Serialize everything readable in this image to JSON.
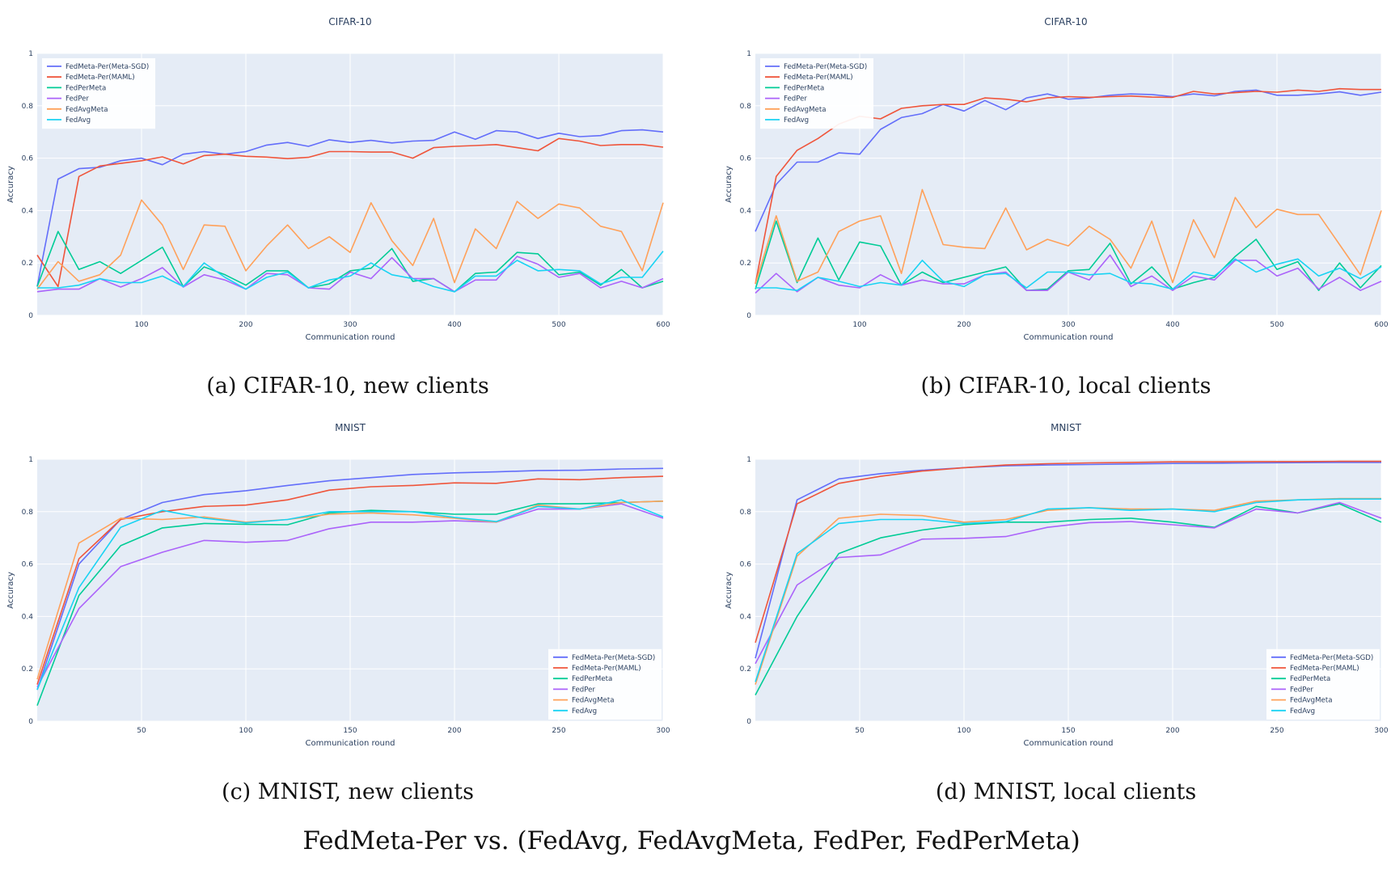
{
  "figure_caption": "FedMeta-Per vs. (FedAvg, FedAvgMeta, FedPer, FedPerMeta)",
  "colors": {
    "FedMeta-Per(Meta-SGD)": "#636efa",
    "FedMeta-Per(MAML)": "#ef553b",
    "FedPerMeta": "#00cc96",
    "FedPer": "#ab63fa",
    "FedAvgMeta": "#ffa15a",
    "FedAvg": "#19d3f3",
    "plot_bg": "#e5ecf6",
    "grid": "#ffffff"
  },
  "chart_data": [
    {
      "type": "line",
      "title": "CIFAR-10",
      "caption": "(a) CIFAR-10, new clients",
      "xlabel": "Communication round",
      "ylabel": "Accuracy",
      "xlim": [
        0,
        600
      ],
      "ylim": [
        0,
        1
      ],
      "xticks": [
        100,
        200,
        300,
        400,
        500,
        600
      ],
      "yticks": [
        0,
        0.2,
        0.4,
        0.6,
        0.8,
        1
      ],
      "ytick_labels": [
        "0",
        "0.2",
        "0.4",
        "0.6",
        "0.8",
        "1"
      ],
      "grid": true,
      "legend_position": "top-left",
      "x": [
        0,
        20,
        40,
        60,
        80,
        100,
        120,
        140,
        160,
        180,
        200,
        220,
        240,
        260,
        280,
        300,
        320,
        340,
        360,
        380,
        400,
        420,
        440,
        460,
        480,
        500,
        520,
        540,
        560,
        580,
        600
      ],
      "series": [
        {
          "name": "FedMeta-Per(Meta-SGD)",
          "values": [
            0.11,
            0.52,
            0.56,
            0.565,
            0.59,
            0.6,
            0.575,
            0.615,
            0.625,
            0.615,
            0.625,
            0.65,
            0.66,
            0.645,
            0.67,
            0.66,
            0.668,
            0.658,
            0.665,
            0.668,
            0.7,
            0.672,
            0.705,
            0.7,
            0.675,
            0.695,
            0.682,
            0.686,
            0.705,
            0.708,
            0.7
          ]
        },
        {
          "name": "FedMeta-Per(MAML)",
          "values": [
            0.23,
            0.11,
            0.53,
            0.57,
            0.58,
            0.59,
            0.605,
            0.578,
            0.61,
            0.615,
            0.607,
            0.604,
            0.598,
            0.603,
            0.625,
            0.625,
            0.623,
            0.623,
            0.6,
            0.64,
            0.645,
            0.648,
            0.652,
            0.64,
            0.628,
            0.675,
            0.665,
            0.648,
            0.652,
            0.652,
            0.642
          ]
        },
        {
          "name": "FedPerMeta",
          "values": [
            0.11,
            0.32,
            0.175,
            0.205,
            0.16,
            0.21,
            0.26,
            0.11,
            0.185,
            0.155,
            0.115,
            0.17,
            0.17,
            0.105,
            0.12,
            0.17,
            0.18,
            0.255,
            0.13,
            0.14,
            0.09,
            0.16,
            0.165,
            0.24,
            0.235,
            0.155,
            0.165,
            0.115,
            0.175,
            0.105,
            0.13
          ]
        },
        {
          "name": "FedPer",
          "values": [
            0.09,
            0.1,
            0.1,
            0.14,
            0.108,
            0.14,
            0.182,
            0.108,
            0.155,
            0.135,
            0.1,
            0.16,
            0.155,
            0.105,
            0.1,
            0.165,
            0.14,
            0.22,
            0.14,
            0.14,
            0.09,
            0.135,
            0.135,
            0.225,
            0.195,
            0.145,
            0.16,
            0.105,
            0.13,
            0.105,
            0.14
          ]
        },
        {
          "name": "FedAvgMeta",
          "values": [
            0.1,
            0.205,
            0.13,
            0.155,
            0.23,
            0.44,
            0.345,
            0.175,
            0.345,
            0.34,
            0.17,
            0.265,
            0.345,
            0.255,
            0.3,
            0.24,
            0.43,
            0.285,
            0.19,
            0.37,
            0.125,
            0.33,
            0.255,
            0.435,
            0.37,
            0.425,
            0.41,
            0.34,
            0.32,
            0.17,
            0.43
          ]
        },
        {
          "name": "FedAvg",
          "values": [
            0.105,
            0.105,
            0.115,
            0.14,
            0.125,
            0.125,
            0.15,
            0.11,
            0.2,
            0.145,
            0.1,
            0.145,
            0.165,
            0.105,
            0.135,
            0.15,
            0.2,
            0.155,
            0.14,
            0.11,
            0.09,
            0.15,
            0.15,
            0.21,
            0.17,
            0.175,
            0.17,
            0.12,
            0.145,
            0.145,
            0.245
          ]
        }
      ]
    },
    {
      "type": "line",
      "title": "CIFAR-10",
      "caption": "(b) CIFAR-10, local clients",
      "xlabel": "Communication round",
      "ylabel": "Accuracy",
      "xlim": [
        0,
        600
      ],
      "ylim": [
        0,
        1
      ],
      "xticks": [
        100,
        200,
        300,
        400,
        500,
        600
      ],
      "yticks": [
        0,
        0.2,
        0.4,
        0.6,
        0.8,
        1
      ],
      "ytick_labels": [
        "0",
        "0.2",
        "0.4",
        "0.6",
        "0.8",
        "1"
      ],
      "grid": true,
      "legend_position": "top-left",
      "x": [
        0,
        20,
        40,
        60,
        80,
        100,
        120,
        140,
        160,
        180,
        200,
        220,
        240,
        260,
        280,
        300,
        320,
        340,
        360,
        380,
        400,
        420,
        440,
        460,
        480,
        500,
        520,
        540,
        560,
        580,
        600
      ],
      "series": [
        {
          "name": "FedMeta-Per(Meta-SGD)",
          "values": [
            0.32,
            0.5,
            0.585,
            0.585,
            0.62,
            0.615,
            0.71,
            0.755,
            0.77,
            0.805,
            0.78,
            0.82,
            0.785,
            0.83,
            0.845,
            0.825,
            0.83,
            0.84,
            0.845,
            0.843,
            0.835,
            0.845,
            0.838,
            0.855,
            0.86,
            0.84,
            0.84,
            0.845,
            0.853,
            0.84,
            0.852
          ]
        },
        {
          "name": "FedMeta-Per(MAML)",
          "values": [
            0.12,
            0.53,
            0.63,
            0.675,
            0.73,
            0.76,
            0.75,
            0.79,
            0.8,
            0.805,
            0.805,
            0.83,
            0.825,
            0.815,
            0.83,
            0.835,
            0.832,
            0.835,
            0.837,
            0.833,
            0.832,
            0.855,
            0.845,
            0.85,
            0.855,
            0.852,
            0.86,
            0.855,
            0.865,
            0.862,
            0.862
          ]
        },
        {
          "name": "FedPerMeta",
          "values": [
            0.1,
            0.36,
            0.125,
            0.295,
            0.135,
            0.28,
            0.265,
            0.115,
            0.165,
            0.125,
            0.145,
            0.165,
            0.185,
            0.095,
            0.1,
            0.17,
            0.175,
            0.275,
            0.12,
            0.185,
            0.1,
            0.125,
            0.145,
            0.225,
            0.29,
            0.175,
            0.205,
            0.095,
            0.2,
            0.105,
            0.19
          ]
        },
        {
          "name": "FedPer",
          "values": [
            0.085,
            0.16,
            0.09,
            0.145,
            0.115,
            0.105,
            0.155,
            0.115,
            0.135,
            0.12,
            0.12,
            0.155,
            0.165,
            0.095,
            0.095,
            0.165,
            0.135,
            0.23,
            0.11,
            0.15,
            0.095,
            0.15,
            0.135,
            0.21,
            0.21,
            0.15,
            0.18,
            0.1,
            0.145,
            0.095,
            0.13
          ]
        },
        {
          "name": "FedAvgMeta",
          "values": [
            0.12,
            0.38,
            0.13,
            0.165,
            0.32,
            0.36,
            0.38,
            0.16,
            0.48,
            0.27,
            0.26,
            0.255,
            0.41,
            0.25,
            0.29,
            0.265,
            0.34,
            0.29,
            0.18,
            0.36,
            0.125,
            0.365,
            0.22,
            0.45,
            0.335,
            0.405,
            0.385,
            0.385,
            0.27,
            0.155,
            0.4
          ]
        },
        {
          "name": "FedAvg",
          "values": [
            0.105,
            0.105,
            0.095,
            0.145,
            0.13,
            0.11,
            0.125,
            0.115,
            0.21,
            0.13,
            0.11,
            0.155,
            0.16,
            0.105,
            0.165,
            0.165,
            0.155,
            0.16,
            0.125,
            0.12,
            0.1,
            0.165,
            0.15,
            0.215,
            0.165,
            0.195,
            0.215,
            0.15,
            0.18,
            0.14,
            0.185
          ]
        }
      ]
    },
    {
      "type": "line",
      "title": "MNIST",
      "caption": "(c) MNIST, new clients",
      "xlabel": "Communication round",
      "ylabel": "Accuracy",
      "xlim": [
        0,
        300
      ],
      "ylim": [
        0,
        1
      ],
      "xticks": [
        50,
        100,
        150,
        200,
        250,
        300
      ],
      "yticks": [
        0,
        0.2,
        0.4,
        0.6,
        0.8,
        1
      ],
      "ytick_labels": [
        "0",
        "0.2",
        "0.4",
        "0.6",
        "0.8",
        "1"
      ],
      "grid": true,
      "legend_position": "bottom-right",
      "x": [
        0,
        20,
        40,
        60,
        80,
        100,
        120,
        140,
        160,
        180,
        200,
        220,
        240,
        260,
        280,
        300
      ],
      "series": [
        {
          "name": "FedMeta-Per(Meta-SGD)",
          "values": [
            0.12,
            0.6,
            0.77,
            0.835,
            0.865,
            0.88,
            0.9,
            0.918,
            0.93,
            0.942,
            0.948,
            0.952,
            0.957,
            0.958,
            0.963,
            0.965
          ]
        },
        {
          "name": "FedMeta-Per(MAML)",
          "values": [
            0.14,
            0.62,
            0.77,
            0.8,
            0.82,
            0.825,
            0.845,
            0.882,
            0.895,
            0.9,
            0.91,
            0.908,
            0.925,
            0.922,
            0.93,
            0.935
          ]
        },
        {
          "name": "FedPerMeta",
          "values": [
            0.06,
            0.48,
            0.67,
            0.738,
            0.755,
            0.752,
            0.75,
            0.795,
            0.805,
            0.8,
            0.79,
            0.79,
            0.83,
            0.83,
            0.835,
            0.84
          ]
        },
        {
          "name": "FedPer",
          "values": [
            0.13,
            0.43,
            0.59,
            0.645,
            0.69,
            0.683,
            0.69,
            0.735,
            0.76,
            0.76,
            0.765,
            0.76,
            0.81,
            0.81,
            0.83,
            0.775
          ]
        },
        {
          "name": "FedAvgMeta",
          "values": [
            0.16,
            0.68,
            0.775,
            0.77,
            0.78,
            0.76,
            0.77,
            0.79,
            0.795,
            0.788,
            0.775,
            0.76,
            0.825,
            0.81,
            0.835,
            0.84
          ]
        },
        {
          "name": "FedAvg",
          "values": [
            0.12,
            0.51,
            0.74,
            0.805,
            0.775,
            0.757,
            0.77,
            0.8,
            0.8,
            0.8,
            0.778,
            0.762,
            0.82,
            0.81,
            0.845,
            0.78
          ]
        }
      ]
    },
    {
      "type": "line",
      "title": "MNIST",
      "caption": "(d) MNIST, local clients",
      "xlabel": "Communication round",
      "ylabel": "Accuracy",
      "xlim": [
        0,
        300
      ],
      "ylim": [
        0,
        1
      ],
      "xticks": [
        50,
        100,
        150,
        200,
        250,
        300
      ],
      "yticks": [
        0,
        0.2,
        0.4,
        0.6,
        0.8,
        1
      ],
      "ytick_labels": [
        "0",
        "0.2",
        "0.4",
        "0.6",
        "0.8",
        "1"
      ],
      "grid": true,
      "legend_position": "bottom-right",
      "x": [
        0,
        20,
        40,
        60,
        80,
        100,
        120,
        140,
        160,
        180,
        200,
        220,
        240,
        260,
        280,
        300
      ],
      "series": [
        {
          "name": "FedMeta-Per(Meta-SGD)",
          "values": [
            0.24,
            0.845,
            0.925,
            0.945,
            0.958,
            0.968,
            0.975,
            0.978,
            0.98,
            0.982,
            0.984,
            0.985,
            0.986,
            0.987,
            0.988,
            0.988
          ]
        },
        {
          "name": "FedMeta-Per(MAML)",
          "values": [
            0.3,
            0.83,
            0.908,
            0.935,
            0.955,
            0.968,
            0.978,
            0.983,
            0.986,
            0.988,
            0.99,
            0.99,
            0.991,
            0.991,
            0.992,
            0.992
          ]
        },
        {
          "name": "FedPerMeta",
          "values": [
            0.1,
            0.4,
            0.64,
            0.7,
            0.73,
            0.75,
            0.76,
            0.76,
            0.77,
            0.775,
            0.76,
            0.74,
            0.82,
            0.795,
            0.83,
            0.76
          ]
        },
        {
          "name": "FedPer",
          "values": [
            0.22,
            0.52,
            0.625,
            0.635,
            0.695,
            0.698,
            0.705,
            0.74,
            0.758,
            0.762,
            0.75,
            0.738,
            0.81,
            0.795,
            0.835,
            0.775
          ]
        },
        {
          "name": "FedAvgMeta",
          "values": [
            0.14,
            0.63,
            0.775,
            0.79,
            0.785,
            0.76,
            0.77,
            0.805,
            0.815,
            0.81,
            0.81,
            0.805,
            0.84,
            0.845,
            0.85,
            0.85
          ]
        },
        {
          "name": "FedAvg",
          "values": [
            0.15,
            0.64,
            0.755,
            0.77,
            0.77,
            0.755,
            0.762,
            0.81,
            0.815,
            0.805,
            0.81,
            0.8,
            0.835,
            0.845,
            0.848,
            0.848
          ]
        }
      ]
    }
  ]
}
